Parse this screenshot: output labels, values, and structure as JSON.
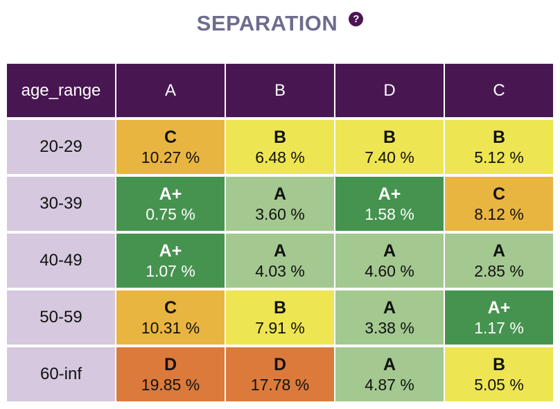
{
  "title": "SEPARATION",
  "help_icon": "?",
  "colors": {
    "header_bg": "#481752",
    "row_label_bg": "#d6c8de",
    "grade_A+": "#46934f",
    "grade_A": "#a3c890",
    "grade_B": "#ede552",
    "grade_C": "#e9b541",
    "grade_D": "#db7a3b"
  },
  "chart_data": {
    "type": "heatmap",
    "title": "SEPARATION",
    "row_header": "age_range",
    "columns": [
      "A",
      "B",
      "D",
      "C"
    ],
    "rows": [
      "20-29",
      "30-39",
      "40-49",
      "50-59",
      "60-inf"
    ],
    "grades": [
      [
        "C",
        "B",
        "B",
        "B"
      ],
      [
        "A+",
        "A",
        "A+",
        "C"
      ],
      [
        "A+",
        "A",
        "A",
        "A"
      ],
      [
        "C",
        "B",
        "A",
        "A+"
      ],
      [
        "D",
        "D",
        "A",
        "B"
      ]
    ],
    "values": [
      [
        10.27,
        6.48,
        7.4,
        5.12
      ],
      [
        0.75,
        3.6,
        1.58,
        8.12
      ],
      [
        1.07,
        4.03,
        4.6,
        2.85
      ],
      [
        10.31,
        7.91,
        3.38,
        1.17
      ],
      [
        19.85,
        17.78,
        4.87,
        5.05
      ]
    ],
    "labels": [
      [
        "10.27 %",
        "6.48 %",
        "7.40 %",
        "5.12 %"
      ],
      [
        "0.75 %",
        "3.60 %",
        "1.58 %",
        "8.12 %"
      ],
      [
        "1.07 %",
        "4.03 %",
        "4.60 %",
        "2.85 %"
      ],
      [
        "10.31 %",
        "7.91 %",
        "3.38 %",
        "1.17 %"
      ],
      [
        "19.85 %",
        "17.78 %",
        "4.87 %",
        "5.05 %"
      ]
    ]
  }
}
